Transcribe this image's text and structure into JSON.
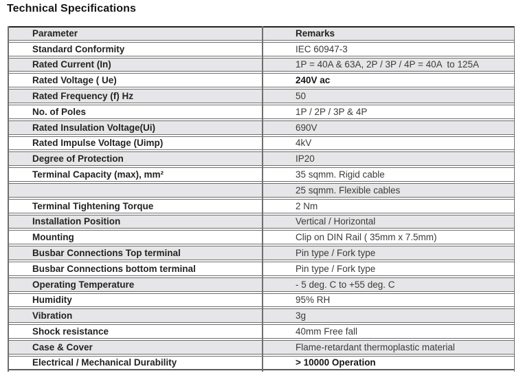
{
  "page": {
    "title": "Technical Specifications"
  },
  "table": {
    "columns": [
      "Parameter",
      "Remarks"
    ],
    "rows": [
      {
        "parameter": "Standard Conformity",
        "remarks": "IEC 60947-3"
      },
      {
        "parameter": "Rated Current (In)",
        "remarks": "1P = 40A & 63A, 2P / 3P / 4P = 40A  to 125A"
      },
      {
        "parameter": "Rated Voltage ( Ue)",
        "remarks": "240V ac",
        "emphasis": true
      },
      {
        "parameter": "Rated Frequency (f) Hz",
        "remarks": "50"
      },
      {
        "parameter": "No. of Poles",
        "remarks": "1P / 2P / 3P & 4P"
      },
      {
        "parameter": "Rated Insulation Voltage(Ui)",
        "remarks": "690V"
      },
      {
        "parameter": "Rated Impulse Voltage (Uimp)",
        "remarks": "4kV"
      },
      {
        "parameter": "Degree of Protection",
        "remarks": "IP20"
      },
      {
        "parameter": "Terminal Capacity (max), mm²",
        "remarks": "35 sqmm. Rigid cable"
      },
      {
        "parameter": "",
        "remarks": "25 sqmm. Flexible cables"
      },
      {
        "parameter": "Terminal Tightening Torque",
        "remarks": "2 Nm"
      },
      {
        "parameter": "Installation Position",
        "remarks": "Vertical / Horizontal"
      },
      {
        "parameter": "Mounting",
        "remarks": "Clip on DIN Rail ( 35mm x 7.5mm)"
      },
      {
        "parameter": "Busbar Connections Top terminal",
        "remarks": "Pin type / Fork type"
      },
      {
        "parameter": "Busbar Connections bottom terminal",
        "remarks": "Pin type / Fork type"
      },
      {
        "parameter": "Operating Temperature",
        "remarks": "- 5 deg. C to +55 deg. C"
      },
      {
        "parameter": "Humidity",
        "remarks": "95% RH"
      },
      {
        "parameter": "Vibration",
        "remarks": "3g"
      },
      {
        "parameter": "Shock resistance",
        "remarks": "40mm Free fall"
      },
      {
        "parameter": "Case & Cover",
        "remarks": "Flame-retardant thermoplastic material"
      },
      {
        "parameter": "Electrical / Mechanical Durability",
        "remarks": "> 10000 Operation",
        "emphasis": true
      }
    ]
  },
  "colors": {
    "row_shade": "#e6e6e8",
    "row_border": "#6e6e6e",
    "table_top_border": "#222222",
    "text": "#232323"
  }
}
